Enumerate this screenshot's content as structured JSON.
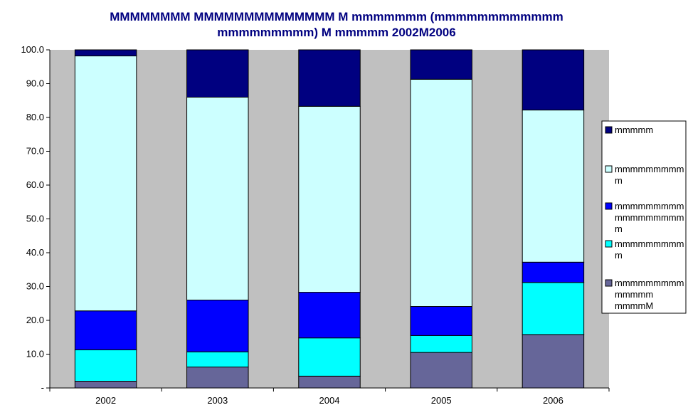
{
  "chart_data": {
    "type": "bar",
    "stacked": true,
    "title_lines": [
      "MMMMMMMM MMMMMMMMMMMMMM M mmmmmmm (mmmmmmmmmmmm",
      "mmmmmmmmm) M mmmmm 2002M2006"
    ],
    "categories": [
      "2002",
      "2003",
      "2004",
      "2005",
      "2006"
    ],
    "ylim": [
      0,
      100
    ],
    "yticks": [
      "-",
      "10.0",
      "20.0",
      "30.0",
      "40.0",
      "50.0",
      "60.0",
      "70.0",
      "80.0",
      "90.0",
      "100.0"
    ],
    "grid": false,
    "legend_position": "right",
    "plot_background": "#C0C0C0",
    "series": [
      {
        "name": "mmmmmmmmm mmmmm mmmmM",
        "legend_lines": [
          "mmmmmmmmm",
          "mmmmm",
          "mmmmM"
        ],
        "color": "#666699",
        "values": [
          2.0,
          6.2,
          3.5,
          10.5,
          15.8
        ]
      },
      {
        "name": "mmmmmmmmm",
        "legend_lines": [
          "mmmmmmmmm",
          "m"
        ],
        "color": "#00FFFF",
        "values": [
          9.3,
          4.5,
          11.3,
          5.0,
          15.4
        ]
      },
      {
        "name": "mmmmmmmmm mmmmmmmmm",
        "legend_lines": [
          "mmmmmmmmm",
          "mmmmmmmmm",
          "m"
        ],
        "color": "#0000FF",
        "values": [
          11.5,
          15.3,
          13.5,
          8.6,
          6.0
        ]
      },
      {
        "name": "mmmmmmmmm",
        "legend_lines": [
          "mmmmmmmmm",
          "m"
        ],
        "color": "#CCFFFF",
        "values": [
          75.4,
          60.0,
          55.0,
          67.2,
          45.0
        ]
      },
      {
        "name": "mmmmm",
        "legend_lines": [
          "mmmmm"
        ],
        "color": "#000080",
        "values": [
          1.8,
          14.0,
          16.7,
          8.7,
          17.8
        ]
      }
    ]
  }
}
